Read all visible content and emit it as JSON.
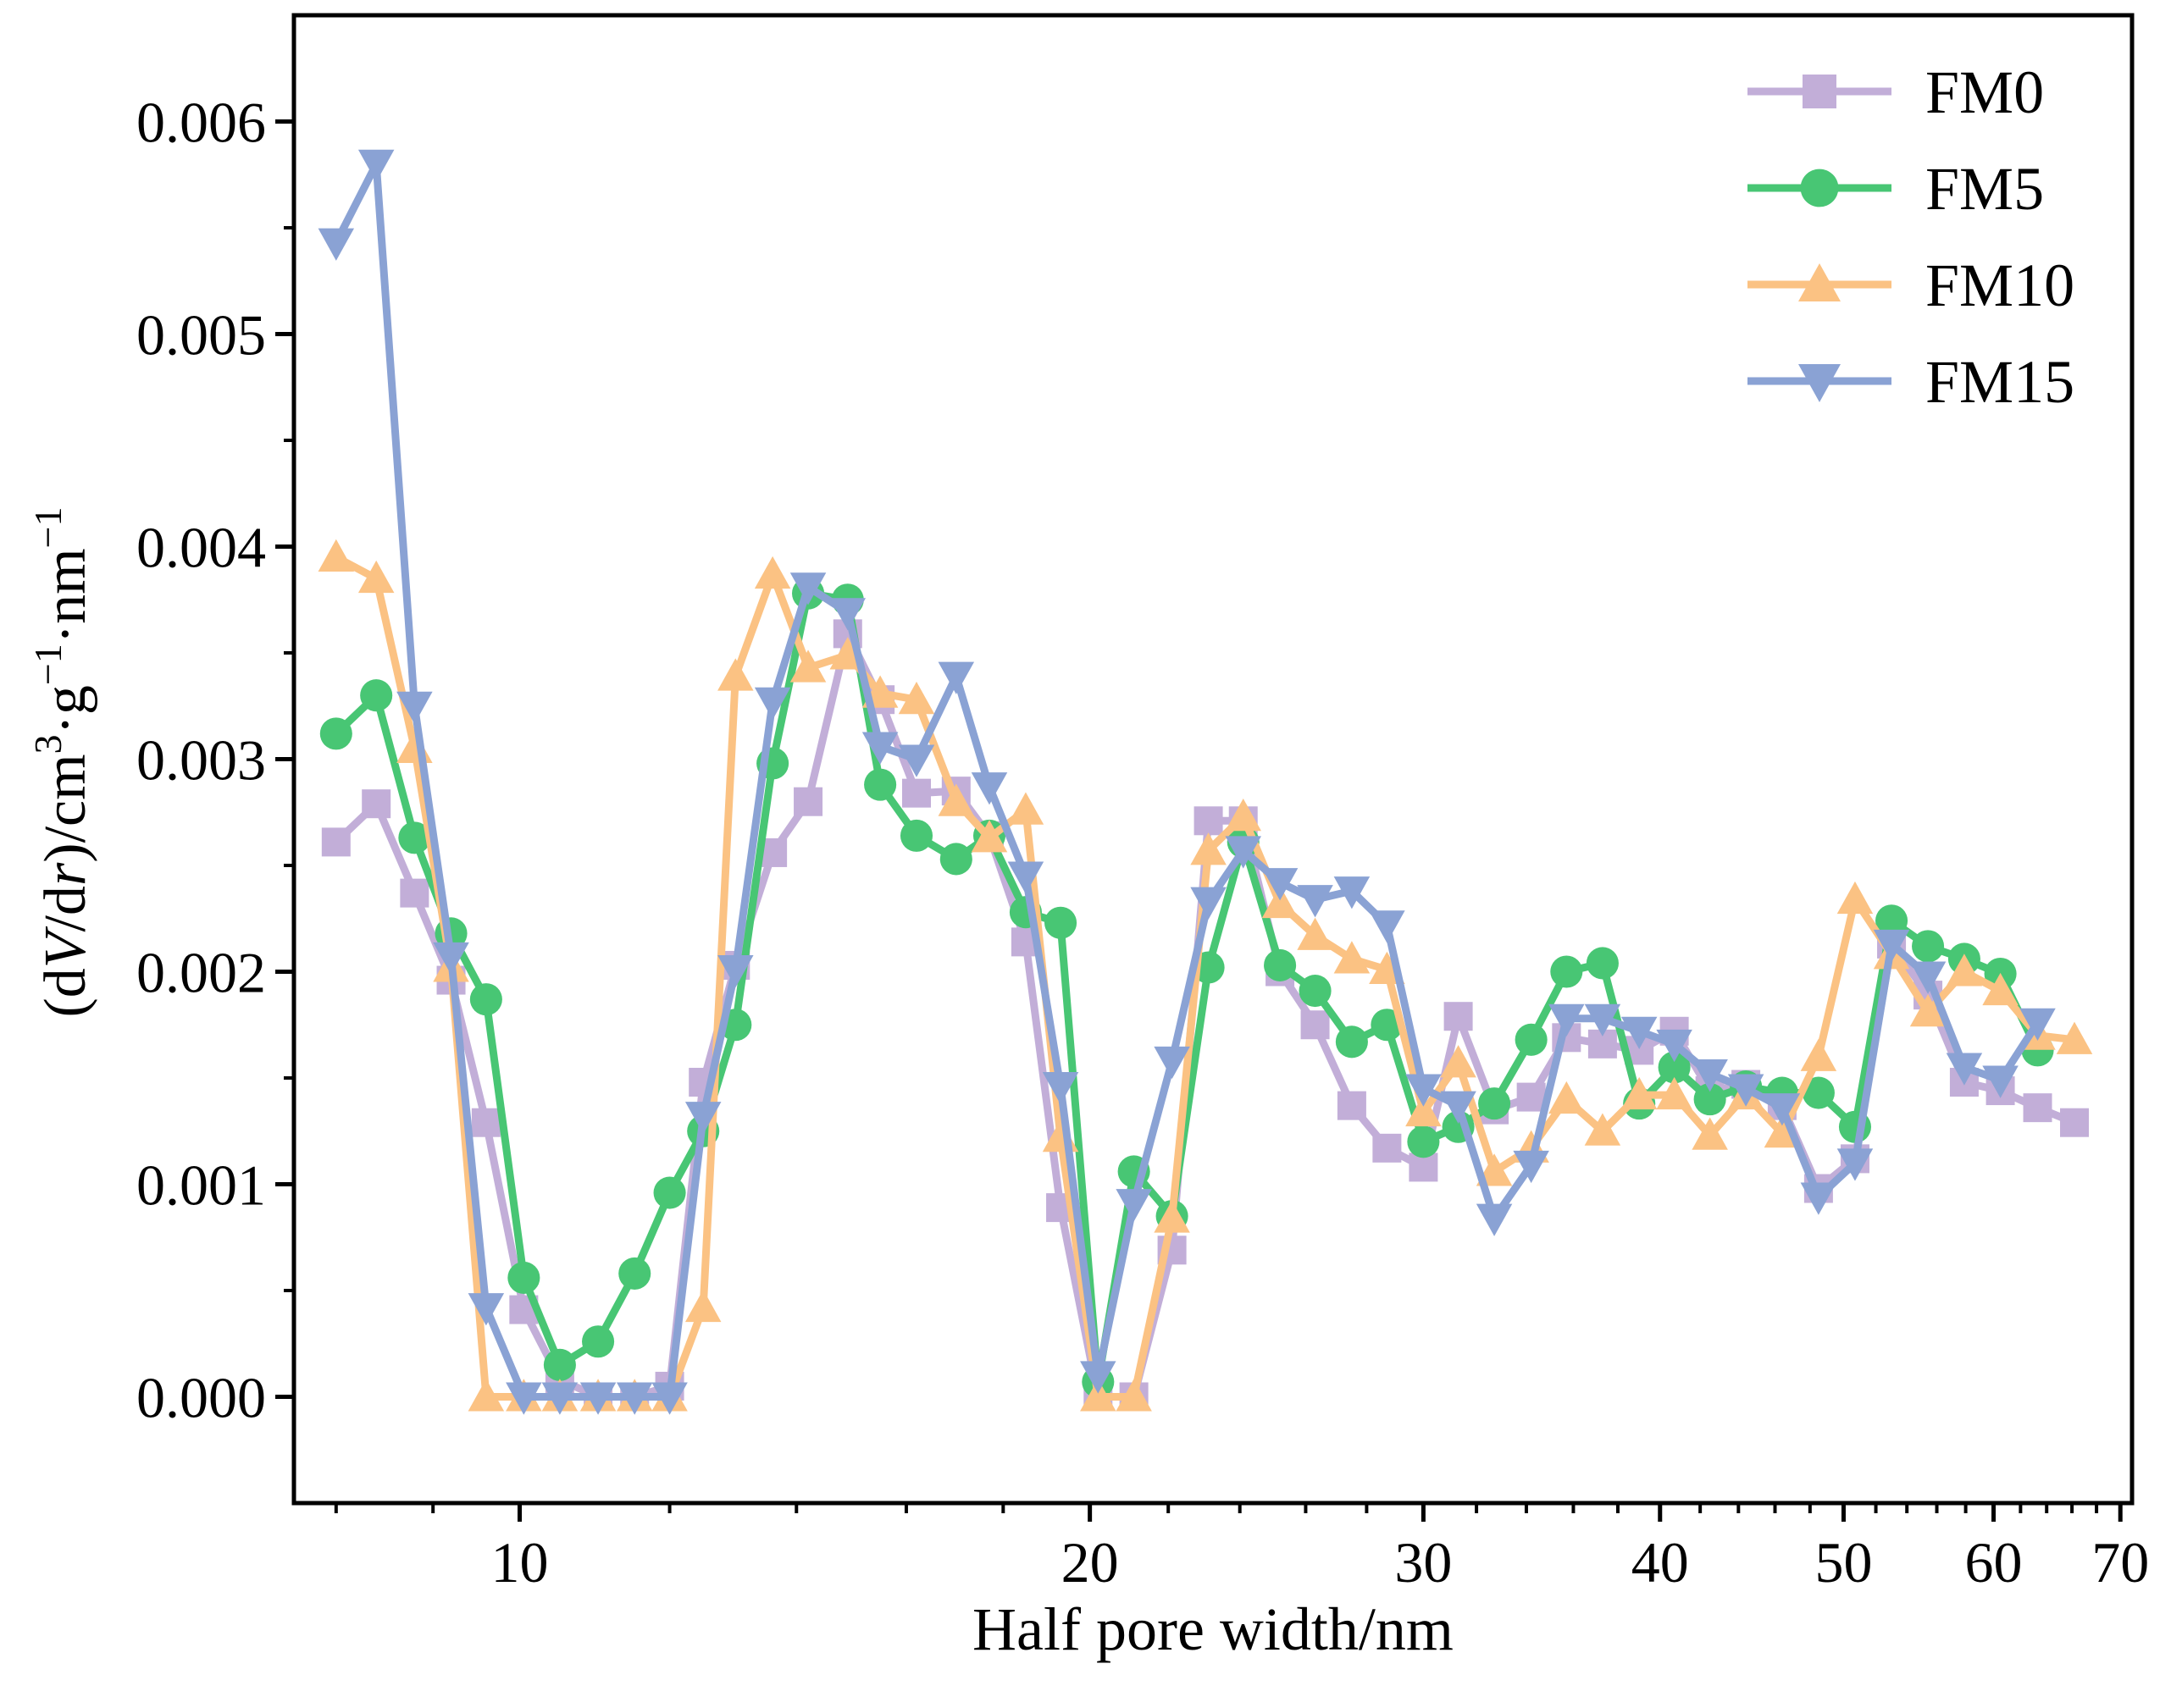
{
  "chart_data": {
    "type": "line",
    "title": "",
    "xlabel": "Half pore width/nm",
    "ylabel_parts": [
      "(d",
      "V",
      "/d",
      "r",
      ")/cm",
      "3",
      "·g",
      "−1",
      "·nm",
      "−1"
    ],
    "xscale": "log",
    "xlim": [
      7.6,
      71
    ],
    "ylim": [
      -0.0005,
      0.0065
    ],
    "x_ticks": [
      10,
      20,
      30,
      40,
      50,
      60,
      70
    ],
    "x_tick_labels": [
      "10",
      "20",
      "30",
      "40",
      "50",
      "60",
      "70"
    ],
    "y_ticks": [
      0,
      0.001,
      0.002,
      0.003,
      0.004,
      0.005,
      0.006
    ],
    "y_tick_labels": [
      "0.000",
      "0.001",
      "0.002",
      "0.003",
      "0.004",
      "0.005",
      "0.006"
    ],
    "legend_position": "top-right",
    "series": [
      {
        "name": "FM0",
        "color": "#c2aed8",
        "marker": "square",
        "points": [
          [
            8.0,
            0.00261
          ],
          [
            8.4,
            0.00279
          ],
          [
            8.8,
            0.00237
          ],
          [
            9.2,
            0.00196
          ],
          [
            9.6,
            0.00129
          ],
          [
            10.05,
            0.00041
          ],
          [
            10.5,
            8e-05
          ],
          [
            11.0,
            0.0
          ],
          [
            11.5,
            0.0
          ],
          [
            12.0,
            5e-05
          ],
          [
            12.5,
            0.00148
          ],
          [
            13.0,
            0.00203
          ],
          [
            13.6,
            0.00256
          ],
          [
            14.2,
            0.0028
          ],
          [
            14.9,
            0.00359
          ],
          [
            15.5,
            0.00328
          ],
          [
            16.2,
            0.00284
          ],
          [
            17.0,
            0.00285
          ],
          [
            17.7,
            0.00264
          ],
          [
            18.5,
            0.00214
          ],
          [
            19.3,
            0.00089
          ],
          [
            20.2,
            0.0
          ],
          [
            21.1,
            0.0
          ],
          [
            22.1,
            0.00069
          ],
          [
            23.1,
            0.00271
          ],
          [
            24.1,
            0.00271
          ],
          [
            25.2,
            0.002
          ],
          [
            26.3,
            0.00175
          ],
          [
            27.5,
            0.00137
          ],
          [
            28.7,
            0.00117
          ],
          [
            30.0,
            0.00108
          ],
          [
            31.3,
            0.00179
          ],
          [
            32.7,
            0.00135
          ],
          [
            34.2,
            0.00141
          ],
          [
            35.7,
            0.00169
          ],
          [
            37.3,
            0.00166
          ],
          [
            39.0,
            0.00163
          ],
          [
            40.7,
            0.00172
          ],
          [
            42.5,
            0.00144
          ],
          [
            44.4,
            0.00147
          ],
          [
            46.4,
            0.00137
          ],
          [
            48.5,
            0.00098
          ],
          [
            50.7,
            0.00112
          ],
          [
            53.0,
            0.00213
          ],
          [
            55.4,
            0.00189
          ],
          [
            57.9,
            0.00148
          ],
          [
            60.5,
            0.00144
          ],
          [
            63.3,
            0.00136
          ],
          [
            66.2,
            0.00129
          ]
        ]
      },
      {
        "name": "FM5",
        "color": "#48c674",
        "marker": "circle",
        "points": [
          [
            8.0,
            0.00312
          ],
          [
            8.4,
            0.0033
          ],
          [
            8.8,
            0.00263
          ],
          [
            9.2,
            0.00218
          ],
          [
            9.6,
            0.00187
          ],
          [
            10.05,
            0.00056
          ],
          [
            10.5,
            0.00015
          ],
          [
            11.0,
            0.00026
          ],
          [
            11.5,
            0.00058
          ],
          [
            12.0,
            0.00096
          ],
          [
            12.5,
            0.00125
          ],
          [
            13.0,
            0.00175
          ],
          [
            13.6,
            0.00298
          ],
          [
            14.2,
            0.00378
          ],
          [
            14.9,
            0.00375
          ],
          [
            15.5,
            0.00288
          ],
          [
            16.2,
            0.00264
          ],
          [
            17.0,
            0.00253
          ],
          [
            17.7,
            0.00264
          ],
          [
            18.5,
            0.00228
          ],
          [
            19.3,
            0.00223
          ],
          [
            20.2,
            7e-05
          ],
          [
            21.1,
            0.00106
          ],
          [
            22.1,
            0.00085
          ],
          [
            23.1,
            0.00202
          ],
          [
            24.1,
            0.00261
          ],
          [
            25.2,
            0.00203
          ],
          [
            26.3,
            0.00191
          ],
          [
            27.5,
            0.00167
          ],
          [
            28.7,
            0.00175
          ],
          [
            30.0,
            0.0012
          ],
          [
            31.3,
            0.00127
          ],
          [
            32.7,
            0.00138
          ],
          [
            34.2,
            0.00168
          ],
          [
            35.7,
            0.002
          ],
          [
            37.3,
            0.00204
          ],
          [
            39.0,
            0.00138
          ],
          [
            40.7,
            0.00155
          ],
          [
            42.5,
            0.0014
          ],
          [
            44.4,
            0.00146
          ],
          [
            46.4,
            0.00143
          ],
          [
            48.5,
            0.00143
          ],
          [
            50.7,
            0.00127
          ],
          [
            53.0,
            0.00224
          ],
          [
            55.4,
            0.00212
          ],
          [
            57.9,
            0.00206
          ],
          [
            60.5,
            0.00199
          ],
          [
            63.3,
            0.00163
          ]
        ]
      },
      {
        "name": "FM10",
        "color": "#fbc283",
        "marker": "triangle-up",
        "points": [
          [
            8.0,
            0.00395
          ],
          [
            8.4,
            0.00385
          ],
          [
            8.8,
            0.00305
          ],
          [
            9.2,
            0.00202
          ],
          [
            9.6,
            0.0
          ],
          [
            10.05,
            0.0
          ],
          [
            10.5,
            0.0
          ],
          [
            11.0,
            0.0
          ],
          [
            11.5,
            0.0
          ],
          [
            12.0,
            0.0
          ],
          [
            12.5,
            0.00042
          ],
          [
            13.0,
            0.00339
          ],
          [
            13.6,
            0.00387
          ],
          [
            14.2,
            0.00343
          ],
          [
            14.9,
            0.00349
          ],
          [
            15.5,
            0.00331
          ],
          [
            16.2,
            0.00328
          ],
          [
            17.0,
            0.0028
          ],
          [
            17.7,
            0.00263
          ],
          [
            18.5,
            0.00276
          ],
          [
            19.3,
            0.00122
          ],
          [
            20.2,
            0.0
          ],
          [
            21.1,
            0.0
          ],
          [
            22.1,
            0.00084
          ],
          [
            23.1,
            0.00257
          ],
          [
            24.1,
            0.00273
          ],
          [
            25.2,
            0.00232
          ],
          [
            26.3,
            0.00217
          ],
          [
            27.5,
            0.00206
          ],
          [
            28.7,
            0.00201
          ],
          [
            30.0,
            0.00134
          ],
          [
            31.3,
            0.00157
          ],
          [
            32.7,
            0.00106
          ],
          [
            34.2,
            0.00117
          ],
          [
            35.7,
            0.0014
          ],
          [
            37.3,
            0.00125
          ],
          [
            39.0,
            0.00142
          ],
          [
            40.7,
            0.00142
          ],
          [
            42.5,
            0.00123
          ],
          [
            44.4,
            0.00142
          ],
          [
            46.4,
            0.00124
          ],
          [
            48.5,
            0.0016
          ],
          [
            50.7,
            0.00234
          ],
          [
            53.0,
            0.00208
          ],
          [
            55.4,
            0.00181
          ],
          [
            57.9,
            0.002
          ],
          [
            60.5,
            0.00191
          ],
          [
            63.3,
            0.0017
          ],
          [
            66.2,
            0.00168
          ]
        ]
      },
      {
        "name": "FM15",
        "color": "#8aa2d4",
        "marker": "triangle-down",
        "points": [
          [
            8.0,
            0.00543
          ],
          [
            8.4,
            0.0058
          ],
          [
            8.8,
            0.00325
          ],
          [
            9.2,
            0.00207
          ],
          [
            9.6,
            0.00042
          ],
          [
            10.05,
            0.0
          ],
          [
            10.5,
            0.0
          ],
          [
            11.0,
            0.0
          ],
          [
            11.5,
            0.0
          ],
          [
            12.0,
            0.0
          ],
          [
            12.5,
            0.00132
          ],
          [
            13.0,
            0.00201
          ],
          [
            13.6,
            0.00327
          ],
          [
            14.2,
            0.00381
          ],
          [
            14.9,
            0.00369
          ],
          [
            15.5,
            0.00306
          ],
          [
            16.2,
            0.003
          ],
          [
            17.0,
            0.00339
          ],
          [
            17.7,
            0.00287
          ],
          [
            18.5,
            0.00245
          ],
          [
            19.3,
            0.00146
          ],
          [
            20.2,
            0.0001
          ],
          [
            21.1,
            0.00091
          ],
          [
            22.1,
            0.00158
          ],
          [
            23.1,
            0.00233
          ],
          [
            24.1,
            0.00257
          ],
          [
            25.2,
            0.00242
          ],
          [
            26.3,
            0.00234
          ],
          [
            27.5,
            0.00238
          ],
          [
            28.7,
            0.00222
          ],
          [
            30.0,
            0.00145
          ],
          [
            31.3,
            0.00137
          ],
          [
            32.7,
            0.00084
          ],
          [
            34.2,
            0.00109
          ],
          [
            35.7,
            0.00178
          ],
          [
            37.3,
            0.00178
          ],
          [
            39.0,
            0.00172
          ],
          [
            40.7,
            0.00166
          ],
          [
            42.5,
            0.00152
          ],
          [
            44.4,
            0.00145
          ],
          [
            46.4,
            0.00136
          ],
          [
            48.5,
            0.00094
          ],
          [
            50.7,
            0.0011
          ],
          [
            53.0,
            0.00213
          ],
          [
            55.4,
            0.00198
          ],
          [
            57.9,
            0.00155
          ],
          [
            60.5,
            0.00149
          ],
          [
            63.3,
            0.00176
          ]
        ]
      }
    ]
  }
}
